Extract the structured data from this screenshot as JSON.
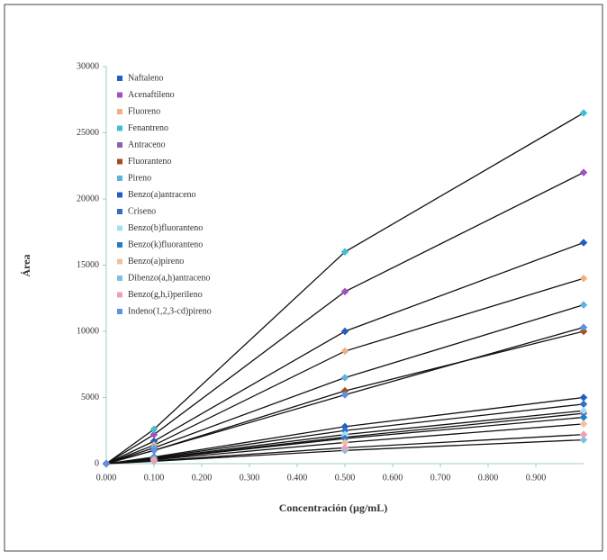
{
  "chart_data": {
    "type": "line",
    "x_label": "Concentración (µg/mL)",
    "y_label": "Área",
    "x": [
      0,
      0.1,
      0.5,
      1.0
    ],
    "xlim": [
      0,
      1.0
    ],
    "xticks": [
      {
        "value": 0,
        "label": "0.000"
      },
      {
        "value": 0.1,
        "label": "0.100"
      },
      {
        "value": 0.2,
        "label": "0.200"
      },
      {
        "value": 0.3,
        "label": "0.300"
      },
      {
        "value": 0.4,
        "label": "0.400"
      },
      {
        "value": 0.5,
        "label": "0.500"
      },
      {
        "value": 0.6,
        "label": "0.600"
      },
      {
        "value": 0.7,
        "label": "0.700"
      },
      {
        "value": 0.8,
        "label": "0.800"
      },
      {
        "value": 0.9,
        "label": "0.900"
      }
    ],
    "ylim": [
      0,
      30000
    ],
    "yticks": [
      0,
      5000,
      10000,
      15000,
      20000,
      25000,
      30000
    ],
    "series": [
      {
        "name": "Naftaleno",
        "color": "#1f5fbf",
        "values": [
          0,
          1700,
          10000,
          16700
        ]
      },
      {
        "name": "Acenaftileno",
        "color": "#a050c0",
        "values": [
          0,
          2200,
          13000,
          22000
        ]
      },
      {
        "name": "Fluoreno",
        "color": "#f0b080",
        "values": [
          0,
          1400,
          8500,
          14000
        ]
      },
      {
        "name": "Fenantreno",
        "color": "#40c0d0",
        "values": [
          0,
          2600,
          16000,
          26500
        ]
      },
      {
        "name": "Antraceno",
        "color": "#9060b0",
        "values": [
          0,
          380,
          2000,
          3800
        ]
      },
      {
        "name": "Fluoranteno",
        "color": "#a05020",
        "values": [
          0,
          1000,
          5500,
          10000
        ]
      },
      {
        "name": "Pireno",
        "color": "#60b0e0",
        "values": [
          0,
          1200,
          6500,
          12000
        ]
      },
      {
        "name": "Benzo(a)antraceno",
        "color": "#2060c0",
        "values": [
          0,
          500,
          2800,
          5000
        ]
      },
      {
        "name": "Criseno",
        "color": "#3070c0",
        "values": [
          0,
          450,
          2500,
          4500
        ]
      },
      {
        "name": "Benzo(b)fluoranteno",
        "color": "#a0e0f0",
        "values": [
          0,
          400,
          2200,
          4000
        ]
      },
      {
        "name": "Benzo(k)fluoranteno",
        "color": "#2080c0",
        "values": [
          0,
          350,
          1900,
          3500
        ]
      },
      {
        "name": "Benzo(a)pireno",
        "color": "#f0c0a0",
        "values": [
          0,
          300,
          1600,
          3000
        ]
      },
      {
        "name": "Dibenzo(a,h)antraceno",
        "color": "#80c0e0",
        "values": [
          0,
          180,
          1000,
          1800
        ]
      },
      {
        "name": "Benzo(g,h,i)perileno",
        "color": "#f0a0b0",
        "values": [
          0,
          220,
          1200,
          2200
        ]
      },
      {
        "name": "Indeno(1,2,3-cd)pireno",
        "color": "#6090e0",
        "values": [
          0,
          1000,
          5200,
          10300
        ]
      }
    ]
  }
}
